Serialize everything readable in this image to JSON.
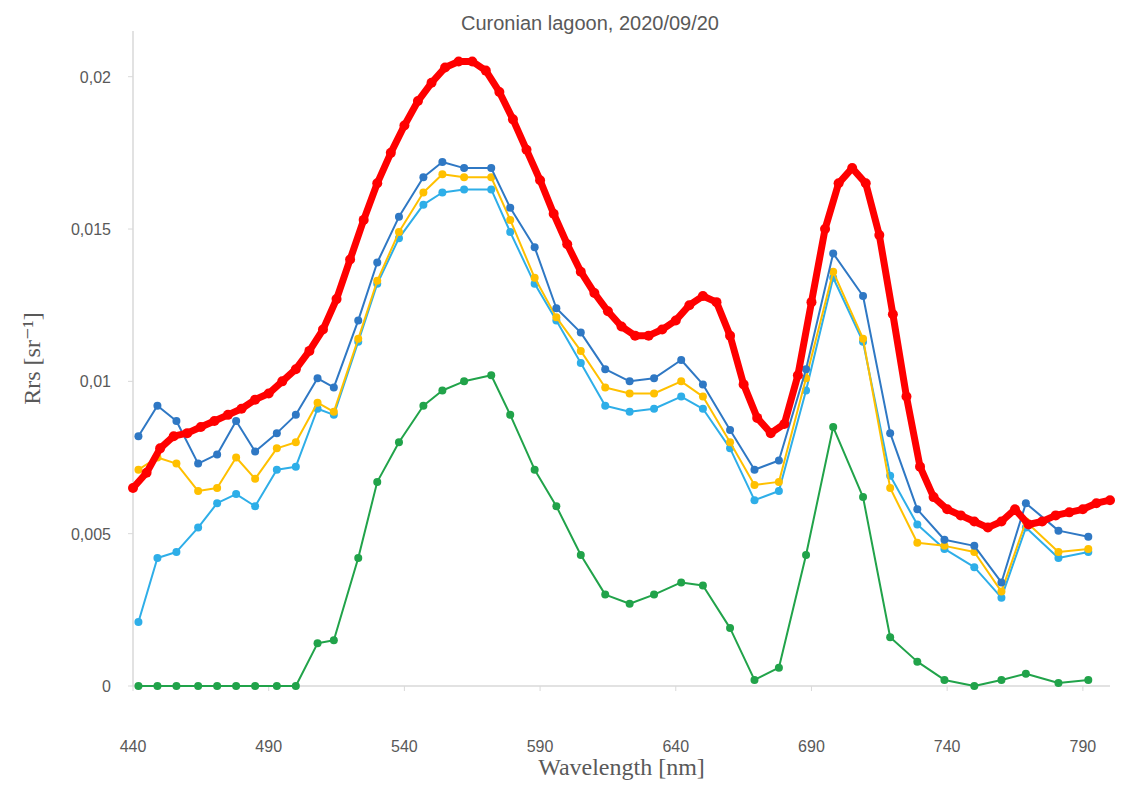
{
  "chart_data": {
    "type": "line",
    "title": "Curonian lagoon, 2020/09/20",
    "x_label": "Wavelength [nm]",
    "y_label": "Rrs [sr⁻¹]",
    "xlim": [
      440,
      800
    ],
    "ylim": [
      0,
      0.0215
    ],
    "xticks": [
      440,
      490,
      540,
      590,
      640,
      690,
      740,
      790
    ],
    "yticks": [
      0,
      {
        "value": 0.005,
        "label": "0,005"
      },
      {
        "value": 0.01,
        "label": "0,01"
      },
      {
        "value": 0.015,
        "label": "0,015"
      },
      {
        "value": 0.02,
        "label": "0,02"
      }
    ],
    "grid": false,
    "series": [
      {
        "color": "#21a34a",
        "marker": "circle",
        "line_style": "solid",
        "x": [
          442,
          449,
          456,
          464,
          471,
          478,
          485,
          493,
          500,
          508,
          514,
          523,
          530,
          538,
          547,
          554,
          562,
          572,
          579,
          588,
          596,
          605,
          614,
          623,
          632,
          642,
          650,
          660,
          669,
          678,
          688,
          698,
          709,
          719,
          729,
          739,
          750,
          760,
          769,
          781,
          792
        ],
        "values": [
          0,
          0,
          0,
          0,
          0,
          0,
          0,
          0,
          0,
          0.0014,
          0.0015,
          0.0042,
          0.0067,
          0.008,
          0.0092,
          0.0097,
          0.01,
          0.0102,
          0.0089,
          0.0071,
          0.0059,
          0.0043,
          0.003,
          0.0027,
          0.003,
          0.0034,
          0.0033,
          0.0019,
          0.0002,
          0.0006,
          0.0043,
          0.0085,
          0.0062,
          0.0016,
          0.0008,
          0.0002,
          0,
          0.0002,
          0.0004,
          0.0001,
          0.0002
        ]
      },
      {
        "color": "#2eaee8",
        "marker": "circle",
        "line_style": "solid",
        "x": [
          442,
          449,
          456,
          464,
          471,
          478,
          485,
          493,
          500,
          508,
          514,
          523,
          530,
          538,
          547,
          554,
          562,
          572,
          579,
          588,
          596,
          605,
          614,
          623,
          632,
          642,
          650,
          660,
          669,
          678,
          688,
          698,
          709,
          719,
          729,
          739,
          750,
          760,
          769,
          781,
          792
        ],
        "values": [
          0.0021,
          0.0042,
          0.0044,
          0.0052,
          0.006,
          0.0063,
          0.0059,
          0.0071,
          0.0072,
          0.0091,
          0.0089,
          0.0113,
          0.0132,
          0.0147,
          0.0158,
          0.0162,
          0.0163,
          0.0163,
          0.0149,
          0.0132,
          0.012,
          0.0106,
          0.0092,
          0.009,
          0.0091,
          0.0095,
          0.0091,
          0.0078,
          0.0061,
          0.0064,
          0.0097,
          0.0134,
          0.0113,
          0.0069,
          0.0053,
          0.0045,
          0.0039,
          0.0029,
          0.0052,
          0.0042,
          0.0044
        ]
      },
      {
        "color": "#ffc000",
        "marker": "circle",
        "line_style": "solid",
        "x": [
          442,
          449,
          456,
          464,
          471,
          478,
          485,
          493,
          500,
          508,
          514,
          523,
          530,
          538,
          547,
          554,
          562,
          572,
          579,
          588,
          596,
          605,
          614,
          623,
          632,
          642,
          650,
          660,
          669,
          678,
          688,
          698,
          709,
          719,
          729,
          739,
          750,
          760,
          769,
          781,
          792
        ],
        "values": [
          0.0071,
          0.0075,
          0.0073,
          0.0064,
          0.0065,
          0.0075,
          0.0068,
          0.0078,
          0.008,
          0.0093,
          0.009,
          0.0114,
          0.0133,
          0.0149,
          0.0162,
          0.0168,
          0.0167,
          0.0167,
          0.0153,
          0.0134,
          0.0121,
          0.011,
          0.0098,
          0.0096,
          0.0096,
          0.01,
          0.0095,
          0.008,
          0.0066,
          0.0067,
          0.0101,
          0.0136,
          0.0114,
          0.0065,
          0.0047,
          0.0046,
          0.0044,
          0.0031,
          0.0054,
          0.0044,
          0.0045
        ]
      },
      {
        "color": "#2f78c4",
        "marker": "circle",
        "line_style": "solid",
        "x": [
          442,
          449,
          456,
          464,
          471,
          478,
          485,
          493,
          500,
          508,
          514,
          523,
          530,
          538,
          547,
          554,
          562,
          572,
          579,
          588,
          596,
          605,
          614,
          623,
          632,
          642,
          650,
          660,
          669,
          678,
          688,
          698,
          709,
          719,
          729,
          739,
          750,
          760,
          769,
          781,
          792
        ],
        "values": [
          0.0082,
          0.0092,
          0.0087,
          0.0073,
          0.0076,
          0.0087,
          0.0077,
          0.0083,
          0.0089,
          0.0101,
          0.0098,
          0.012,
          0.0139,
          0.0154,
          0.0167,
          0.0172,
          0.017,
          0.017,
          0.0157,
          0.0144,
          0.0124,
          0.0116,
          0.0104,
          0.01,
          0.0101,
          0.0107,
          0.0099,
          0.0084,
          0.0071,
          0.0074,
          0.0104,
          0.0142,
          0.0128,
          0.0083,
          0.0058,
          0.0048,
          0.0046,
          0.0034,
          0.006,
          0.0051,
          0.0049
        ]
      },
      {
        "color": "#ff0000",
        "marker": "circle",
        "line_style": "solid",
        "x": [
          440,
          445,
          450,
          455,
          460,
          465,
          470,
          475,
          480,
          485,
          490,
          495,
          500,
          505,
          510,
          515,
          520,
          525,
          530,
          535,
          540,
          545,
          550,
          555,
          560,
          565,
          570,
          575,
          580,
          585,
          590,
          595,
          600,
          605,
          610,
          615,
          620,
          625,
          630,
          635,
          640,
          645,
          650,
          655,
          660,
          665,
          670,
          675,
          680,
          685,
          690,
          695,
          700,
          705,
          710,
          715,
          720,
          725,
          730,
          735,
          740,
          745,
          750,
          755,
          760,
          765,
          770,
          775,
          780,
          785,
          790,
          795,
          800
        ],
        "values": [
          0.0065,
          0.007,
          0.0078,
          0.0082,
          0.0083,
          0.0085,
          0.0087,
          0.0089,
          0.0091,
          0.0094,
          0.0096,
          0.01,
          0.0104,
          0.011,
          0.0117,
          0.0127,
          0.014,
          0.0153,
          0.0165,
          0.0175,
          0.0184,
          0.0192,
          0.0198,
          0.0203,
          0.0205,
          0.0205,
          0.0202,
          0.0195,
          0.0186,
          0.0176,
          0.0166,
          0.0155,
          0.0145,
          0.0136,
          0.0129,
          0.0123,
          0.0118,
          0.0115,
          0.0115,
          0.0117,
          0.012,
          0.0125,
          0.0128,
          0.0126,
          0.0115,
          0.0099,
          0.0088,
          0.0083,
          0.0086,
          0.0102,
          0.0126,
          0.015,
          0.0165,
          0.017,
          0.0165,
          0.0148,
          0.0122,
          0.0095,
          0.0072,
          0.0062,
          0.0058,
          0.0056,
          0.0054,
          0.0052,
          0.0054,
          0.0058,
          0.0053,
          0.0054,
          0.0056,
          0.0057,
          0.0058,
          0.006,
          0.0061
        ]
      }
    ]
  }
}
